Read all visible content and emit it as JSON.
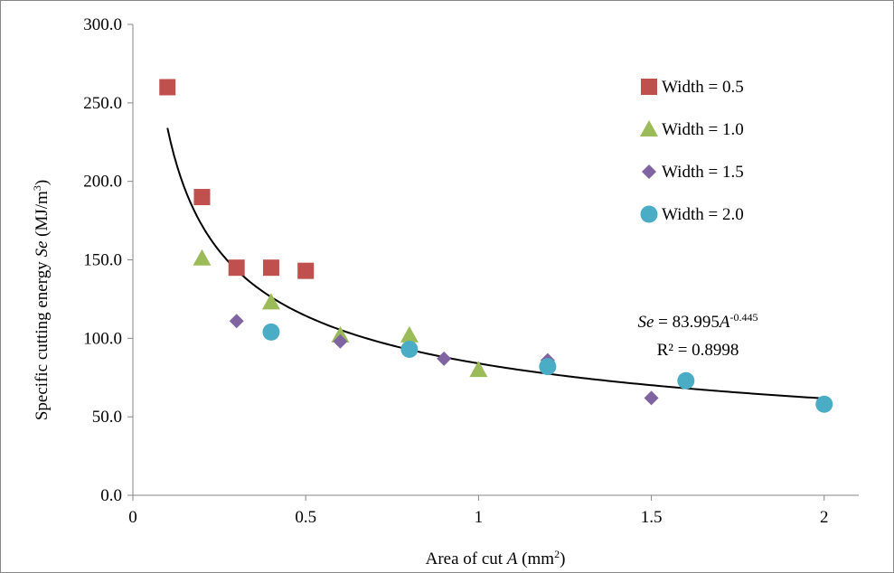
{
  "colors": {
    "width_0_5": "#C0504D",
    "width_1_0": "#9BBB59",
    "width_1_5": "#8064A2",
    "width_2_0": "#4BACC6",
    "trendline": "#000000",
    "axis": "#868686",
    "frame": "#868686"
  },
  "chart_data": {
    "type": "scatter",
    "title": "",
    "xlim": [
      0,
      2.1
    ],
    "ylim": [
      0,
      300
    ],
    "x_ticks": [
      0,
      0.5,
      1,
      1.5,
      2
    ],
    "x_tick_labels": [
      "0",
      "0.5",
      "1",
      "1.5",
      "2"
    ],
    "y_ticks": [
      0,
      50,
      100,
      150,
      200,
      250,
      300
    ],
    "y_tick_labels": [
      "0.0",
      "50.0",
      "100.0",
      "150.0",
      "200.0",
      "250.0",
      "300.0"
    ],
    "grid": false,
    "legend_position": "top-right",
    "xlabel": {
      "prefix": "Area of cut ",
      "var": "A",
      "suffix": " (mm",
      "sup": "2",
      "close": ")"
    },
    "ylabel": {
      "prefix": "Specific cutting energy  ",
      "var": "Se",
      "suffix": " (MJ/m",
      "sup": "3",
      "close": ")"
    },
    "series": [
      {
        "name": "Width = 0.5",
        "marker": "square",
        "color": "#C0504D",
        "x": [
          0.1,
          0.2,
          0.3,
          0.4,
          0.5
        ],
        "y": [
          260,
          190,
          145,
          145,
          143
        ]
      },
      {
        "name": "Width = 1.0",
        "marker": "triangle",
        "color": "#9BBB59",
        "x": [
          0.2,
          0.4,
          0.6,
          0.8,
          1.0
        ],
        "y": [
          151,
          123,
          102,
          102,
          80
        ]
      },
      {
        "name": "Width = 1.5",
        "marker": "diamond",
        "color": "#8064A2",
        "x": [
          0.3,
          0.6,
          0.9,
          1.2,
          1.5
        ],
        "y": [
          111,
          98,
          87,
          86,
          62
        ]
      },
      {
        "name": "Width = 2.0",
        "marker": "circle",
        "color": "#4BACC6",
        "x": [
          0.4,
          0.8,
          1.2,
          1.6,
          2.0
        ],
        "y": [
          104,
          93,
          82,
          73,
          58
        ]
      }
    ],
    "trendline": {
      "type": "power",
      "coefficient": 83.995,
      "exponent": -0.445,
      "x_range": [
        0.1,
        2.0
      ],
      "equation": {
        "lhs": "Se",
        "mid": " = 83.995",
        "var": "A",
        "exp": "-0.445"
      },
      "r_squared_label": "R² = 0.8998"
    }
  }
}
